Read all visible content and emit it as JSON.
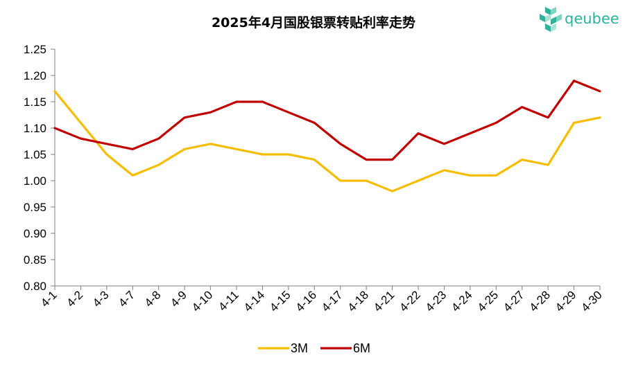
{
  "chart_data": {
    "type": "line",
    "title": "2025年4月国股银票转贴利率走势",
    "xlabel": "",
    "ylabel": "",
    "ylim": [
      0.8,
      1.25
    ],
    "y_ticks": [
      "1.25",
      "1.20",
      "1.15",
      "1.10",
      "1.05",
      "1.00",
      "0.95",
      "0.90",
      "0.85",
      "0.80"
    ],
    "categories": [
      "4-1",
      "4-2",
      "4-3",
      "4-7",
      "4-8",
      "4-9",
      "4-10",
      "4-11",
      "4-14",
      "4-15",
      "4-16",
      "4-17",
      "4-18",
      "4-21",
      "4-22",
      "4-23",
      "4-24",
      "4-25",
      "4-27",
      "4-28",
      "4-29",
      "4-30"
    ],
    "series": [
      {
        "name": "3M",
        "color": "#f5bd00",
        "values": [
          1.17,
          1.11,
          1.05,
          1.01,
          1.03,
          1.06,
          1.07,
          1.06,
          1.05,
          1.05,
          1.04,
          1.0,
          1.0,
          0.98,
          1.0,
          1.02,
          1.01,
          1.01,
          1.04,
          1.03,
          1.11,
          1.12
        ]
      },
      {
        "name": "6M",
        "color": "#c00000",
        "values": [
          1.1,
          1.08,
          1.07,
          1.06,
          1.08,
          1.12,
          1.13,
          1.15,
          1.15,
          1.13,
          1.11,
          1.07,
          1.04,
          1.04,
          1.09,
          1.07,
          1.09,
          1.11,
          1.14,
          1.12,
          1.19,
          1.17
        ]
      }
    ],
    "grid": false,
    "legend_position": "bottom"
  },
  "logo": {
    "text": "qeubee",
    "color": "#2eb39a"
  }
}
